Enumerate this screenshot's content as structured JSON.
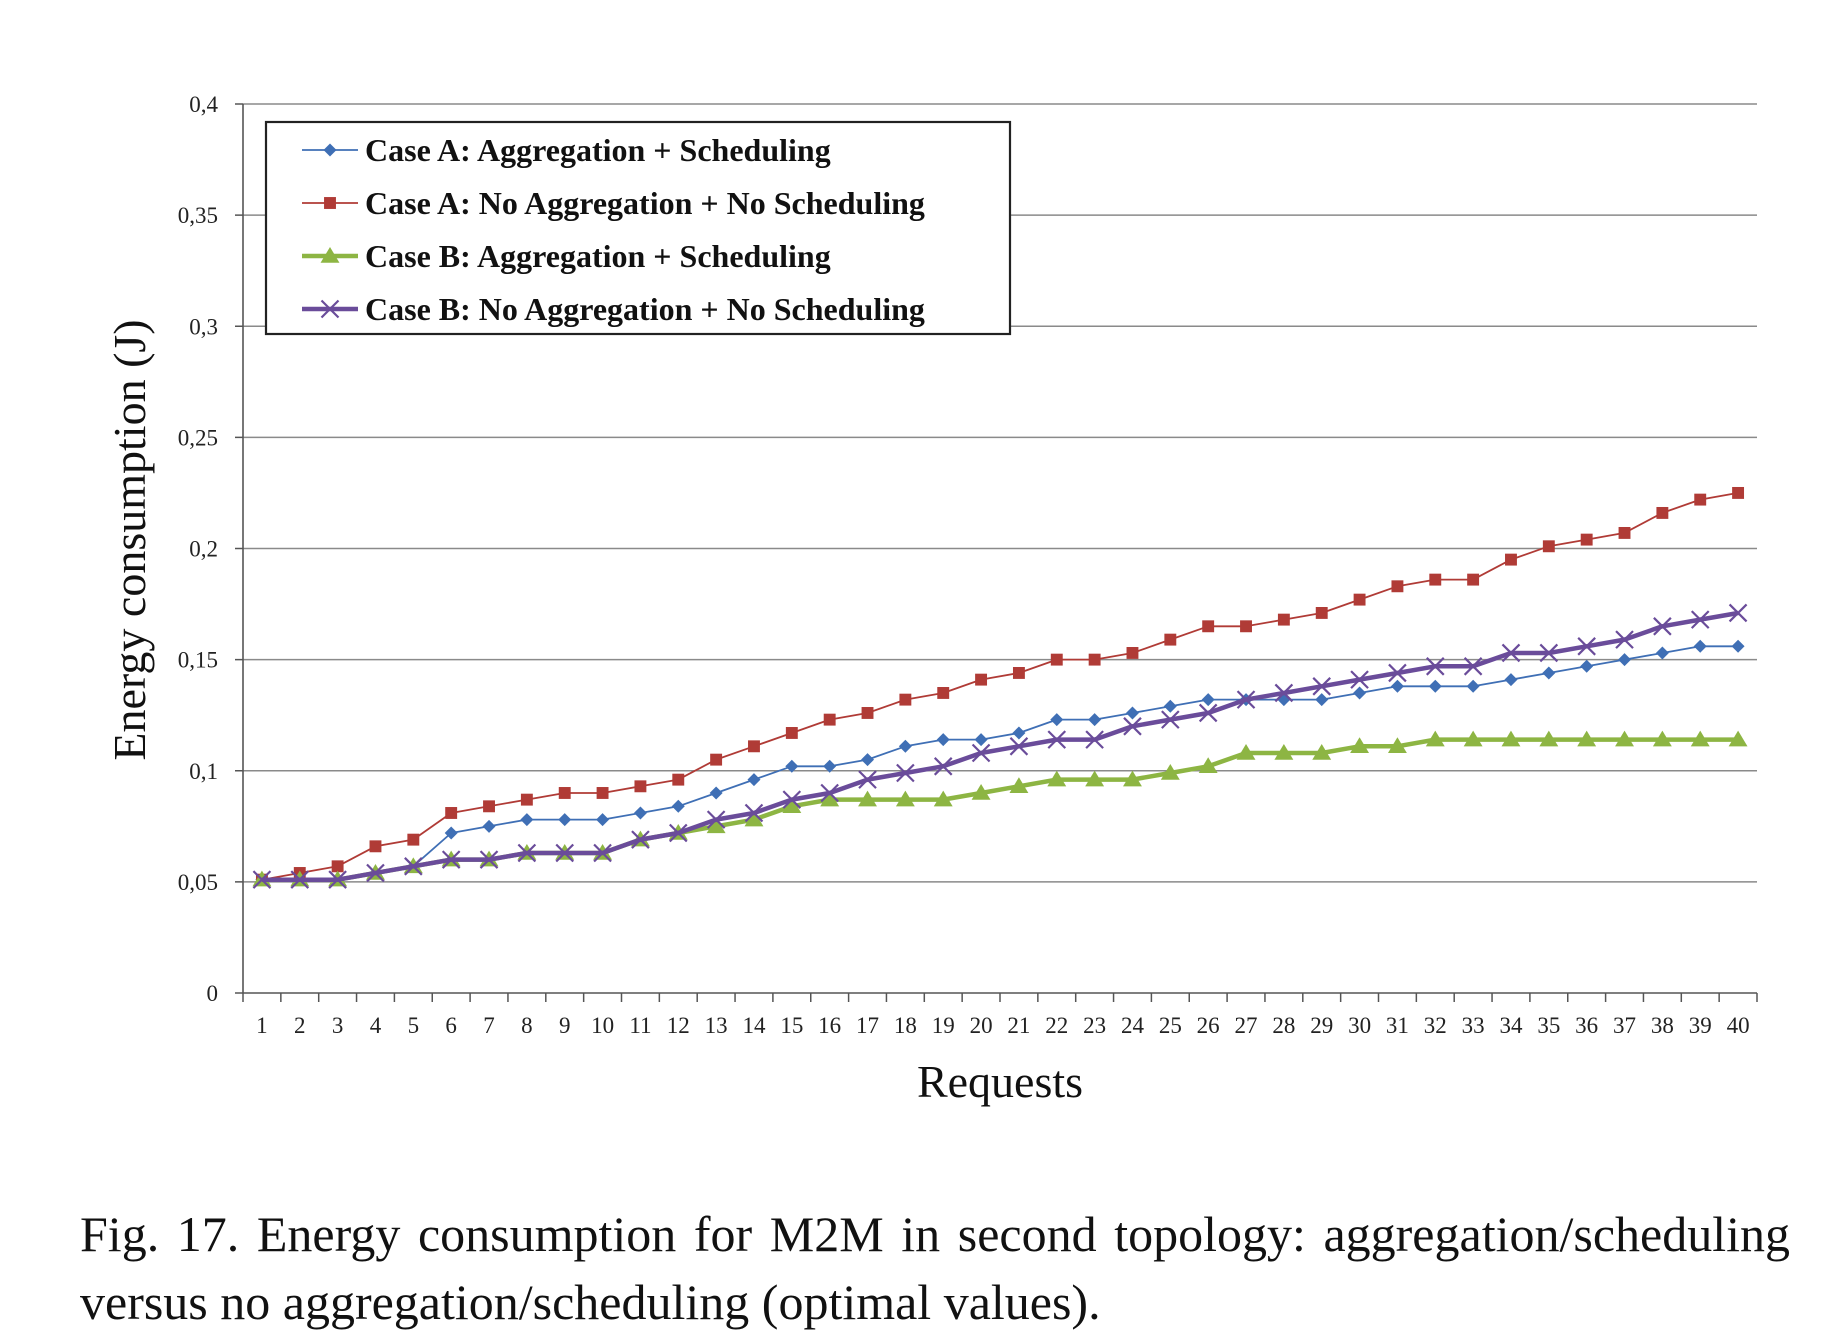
{
  "caption": "Fig.  17. Energy consumption for M2M in second topology: aggregation/scheduling versus no aggregation/scheduling (optimal values).",
  "chart_data": {
    "type": "line",
    "xlabel": "Requests",
    "ylabel": "Energy consumption (J)",
    "ylim": [
      0,
      0.4
    ],
    "y_ticks": [
      "0",
      "0,05",
      "0,1",
      "0,15",
      "0,2",
      "0,25",
      "0,3",
      "0,35",
      "0,4"
    ],
    "y_tick_values": [
      0,
      0.05,
      0.1,
      0.15,
      0.2,
      0.25,
      0.3,
      0.35,
      0.4
    ],
    "grid": true,
    "legend_position": "top-left",
    "categories": [
      "1",
      "2",
      "3",
      "4",
      "5",
      "6",
      "7",
      "8",
      "9",
      "10",
      "11",
      "12",
      "13",
      "14",
      "15",
      "16",
      "17",
      "18",
      "19",
      "20",
      "21",
      "22",
      "23",
      "24",
      "25",
      "26",
      "27",
      "28",
      "29",
      "30",
      "31",
      "32",
      "33",
      "34",
      "35",
      "36",
      "37",
      "38",
      "39",
      "40"
    ],
    "series": [
      {
        "name": "Case A: Aggregation + Scheduling",
        "color": "#3f6fb5",
        "marker": "diamond",
        "values": [
          0.051,
          0.051,
          0.051,
          0.054,
          0.057,
          0.072,
          0.075,
          0.078,
          0.078,
          0.078,
          0.081,
          0.084,
          0.09,
          0.096,
          0.102,
          0.102,
          0.105,
          0.111,
          0.114,
          0.114,
          0.117,
          0.123,
          0.123,
          0.126,
          0.129,
          0.132,
          0.132,
          0.132,
          0.132,
          0.135,
          0.138,
          0.138,
          0.138,
          0.141,
          0.144,
          0.147,
          0.15,
          0.153,
          0.156,
          0.156
        ]
      },
      {
        "name": "Case A: No Aggregation + No Scheduling",
        "color": "#b03b36",
        "marker": "square",
        "values": [
          0.051,
          0.054,
          0.057,
          0.066,
          0.069,
          0.081,
          0.084,
          0.087,
          0.09,
          0.09,
          0.093,
          0.096,
          0.105,
          0.111,
          0.117,
          0.123,
          0.126,
          0.132,
          0.135,
          0.141,
          0.144,
          0.15,
          0.15,
          0.153,
          0.159,
          0.165,
          0.165,
          0.168,
          0.171,
          0.177,
          0.183,
          0.186,
          0.186,
          0.195,
          0.201,
          0.204,
          0.207,
          0.216,
          0.222,
          0.225
        ]
      },
      {
        "name": "Case B: Aggregation + Scheduling",
        "color": "#8db543",
        "marker": "triangle",
        "values": [
          0.051,
          0.051,
          0.051,
          0.054,
          0.057,
          0.06,
          0.06,
          0.063,
          0.063,
          0.063,
          0.069,
          0.072,
          0.075,
          0.078,
          0.084,
          0.087,
          0.087,
          0.087,
          0.087,
          0.09,
          0.093,
          0.096,
          0.096,
          0.096,
          0.099,
          0.102,
          0.108,
          0.108,
          0.108,
          0.111,
          0.111,
          0.114,
          0.114,
          0.114,
          0.114,
          0.114,
          0.114,
          0.114,
          0.114,
          0.114
        ]
      },
      {
        "name": "Case B: No Aggregation + No Scheduling",
        "color": "#6a4c9a",
        "marker": "cross",
        "values": [
          0.051,
          0.051,
          0.051,
          0.054,
          0.057,
          0.06,
          0.06,
          0.063,
          0.063,
          0.063,
          0.069,
          0.072,
          0.078,
          0.081,
          0.087,
          0.09,
          0.096,
          0.099,
          0.102,
          0.108,
          0.111,
          0.114,
          0.114,
          0.12,
          0.123,
          0.126,
          0.132,
          0.135,
          0.138,
          0.141,
          0.144,
          0.147,
          0.147,
          0.153,
          0.153,
          0.156,
          0.159,
          0.165,
          0.168,
          0.171
        ]
      }
    ]
  }
}
